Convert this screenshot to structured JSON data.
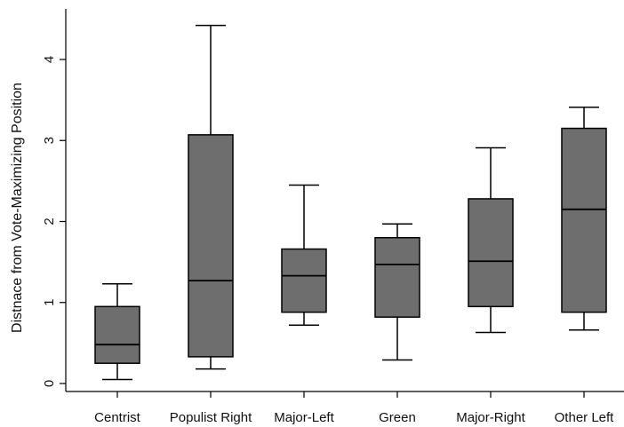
{
  "chart_data": {
    "type": "boxplot",
    "title": "",
    "xlabel": "",
    "ylabel": "Distnace from Vote-Maximizing Position",
    "ylim": [
      -0.1,
      4.6
    ],
    "yticks": [
      0,
      1,
      2,
      3,
      4
    ],
    "ytick_labels": [
      "0",
      "1",
      "2",
      "3",
      "4"
    ],
    "grid": false,
    "box_color": "#6e6e6e",
    "line_color": "#000000",
    "categories": [
      "Centrist",
      "Populist Right",
      "Major-Left",
      "Green",
      "Major-Right",
      "Other Left"
    ],
    "boxes": [
      {
        "category": "Centrist",
        "whisker_low": 0.05,
        "q1": 0.25,
        "median": 0.48,
        "q3": 0.95,
        "whisker_high": 1.23
      },
      {
        "category": "Populist Right",
        "whisker_low": 0.18,
        "q1": 0.33,
        "median": 1.27,
        "q3": 3.07,
        "whisker_high": 4.42
      },
      {
        "category": "Major-Left",
        "whisker_low": 0.72,
        "q1": 0.88,
        "median": 1.33,
        "q3": 1.66,
        "whisker_high": 2.45
      },
      {
        "category": "Green",
        "whisker_low": 0.29,
        "q1": 0.82,
        "median": 1.47,
        "q3": 1.8,
        "whisker_high": 1.97
      },
      {
        "category": "Major-Right",
        "whisker_low": 0.63,
        "q1": 0.95,
        "median": 1.51,
        "q3": 2.28,
        "whisker_high": 2.91
      },
      {
        "category": "Other Left",
        "whisker_low": 0.66,
        "q1": 0.88,
        "median": 2.15,
        "q3": 3.15,
        "whisker_high": 3.41
      }
    ]
  }
}
